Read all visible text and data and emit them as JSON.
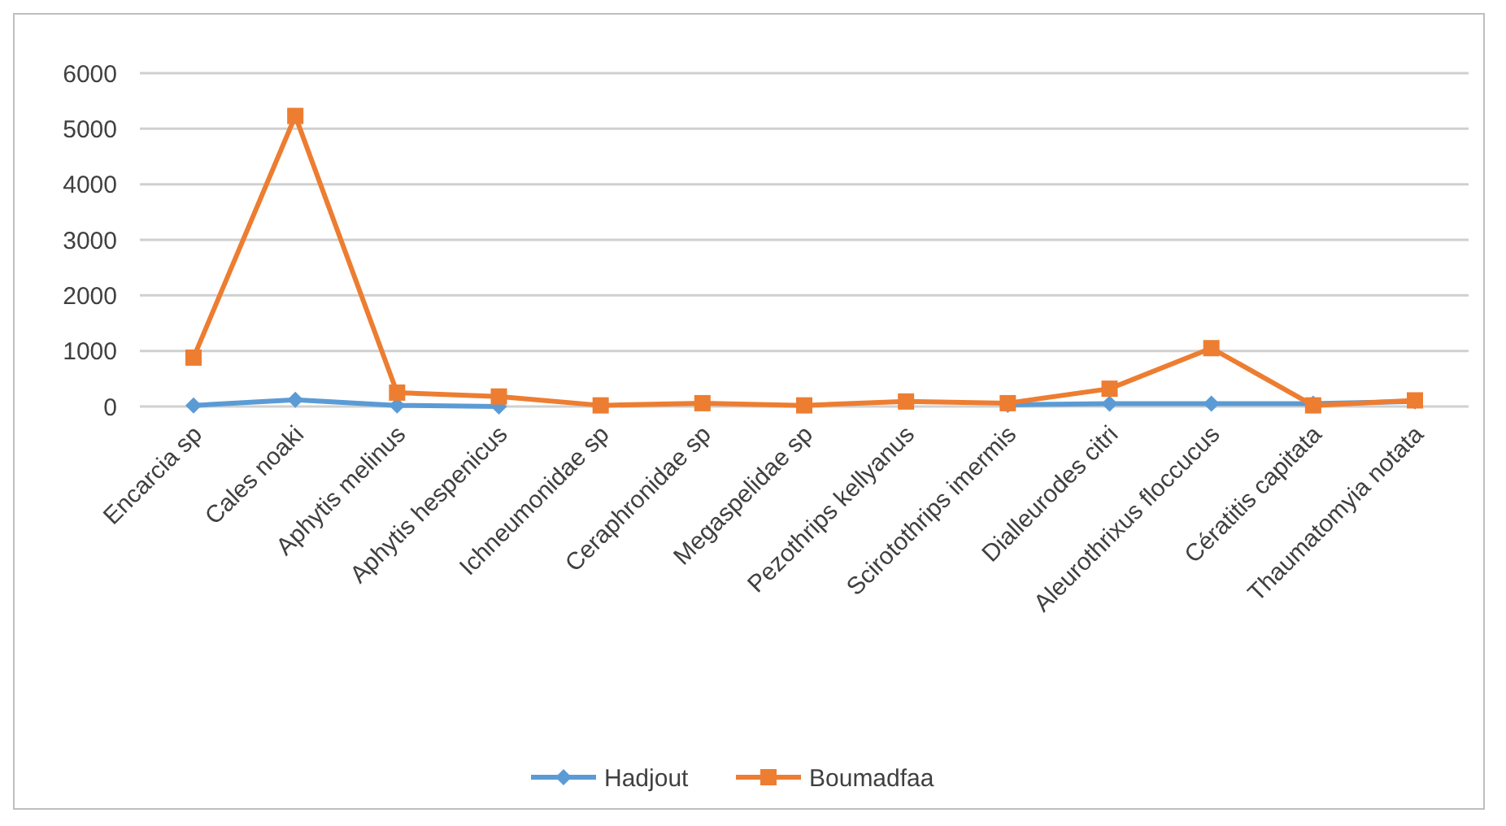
{
  "chart_data": {
    "type": "line",
    "categories": [
      "Encarcia sp",
      "Cales noaki",
      "Aphytis melinus",
      "Aphytis hespenicus",
      "Ichneumonidae sp",
      "Ceraphronidae sp",
      "Megaspelidae sp",
      "Pezothrips kellyanus",
      "Scirotothrips imermis",
      "Dialleurodes citri",
      "Aleurothrixus floccucus",
      "Cératitis capitata",
      "Thaumatomyia notata"
    ],
    "series": [
      {
        "name": "Hadjout",
        "color": "#5b9bd5",
        "marker": "diamond",
        "values": [
          20,
          120,
          20,
          0,
          null,
          null,
          null,
          null,
          30,
          50,
          50,
          50,
          90
        ]
      },
      {
        "name": "Boumadfaa",
        "color": "#ed7d31",
        "marker": "square",
        "values": [
          880,
          5230,
          250,
          180,
          20,
          60,
          20,
          90,
          60,
          320,
          1050,
          20,
          110
        ]
      }
    ],
    "ylim": [
      0,
      6000
    ],
    "yticks": [
      0,
      1000,
      2000,
      3000,
      4000,
      5000,
      6000
    ],
    "grid": "y",
    "legend": "bottom"
  }
}
